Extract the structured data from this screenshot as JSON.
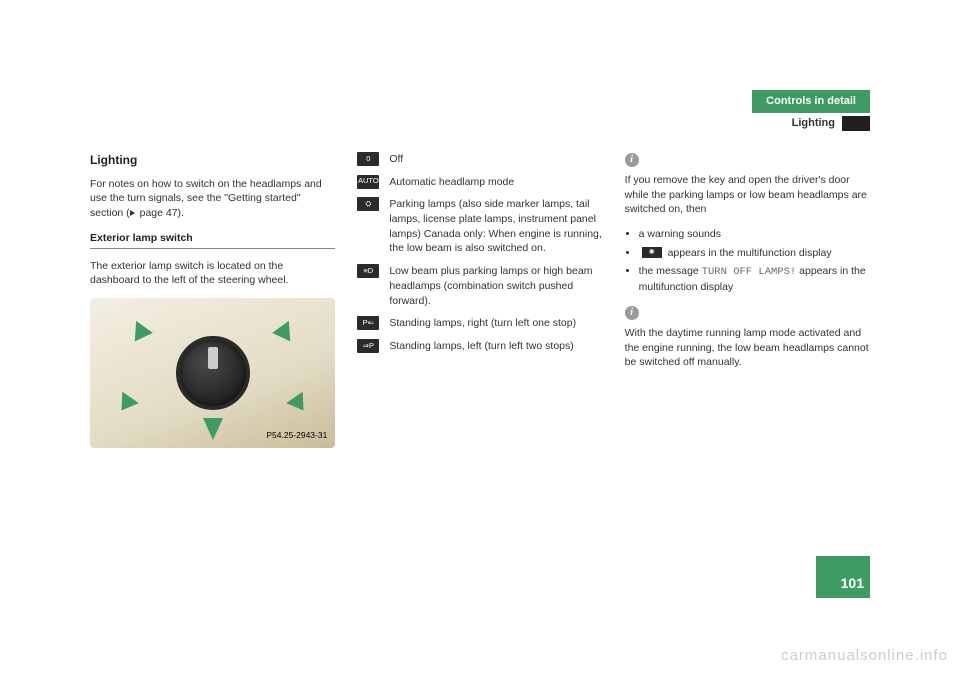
{
  "header": {
    "tab": "Controls in detail",
    "section": "Lighting"
  },
  "col1": {
    "heading": "Lighting",
    "para1_a": "For notes on how to switch on the head­lamps and use the turn signals, see the \"Getting started\" section (",
    "para1_b": " page 47).",
    "subhead": "Exterior lamp switch",
    "para2": "The exterior lamp switch is located on the dashboard to the left of the steering wheel.",
    "figure_label": "P54.25-2943-31"
  },
  "col2": {
    "items": [
      {
        "icon": "0",
        "text": "Off"
      },
      {
        "icon": "AUTO",
        "text": "Automatic headlamp mode"
      },
      {
        "icon": "⛭",
        "text": "Parking lamps (also side marker lamps, tail lamps, license plate lamps, instrument panel lamps) Canada only: When engine is running, the low beam is also switched on."
      },
      {
        "icon": "≡D",
        "text": "Low beam plus parking lamps or high beam headlamps (combination switch pushed forward)."
      },
      {
        "icon": "P⇐",
        "text": "Standing lamps, right (turn left one stop)"
      },
      {
        "icon": "⇒P",
        "text": "Standing lamps, left (turn left two stops)"
      }
    ]
  },
  "col3": {
    "note1_intro": "If you remove the key and open the driver's door while the parking lamps or low beam headlamps are switched on, then",
    "note1_bullets": {
      "b1": "a warning sounds",
      "b2_a": "",
      "b2_b": " appears in the multifunction display",
      "b3_a": "the message ",
      "b3_msg": "TURN OFF LAMPS!",
      "b3_b": " ap­pears in the multifunction display"
    },
    "note2": "With the daytime running lamp mode activated and the engine running, the low beam headlamps cannot be switched off manually."
  },
  "page_number": "101",
  "watermark": "carmanualsonline.info"
}
